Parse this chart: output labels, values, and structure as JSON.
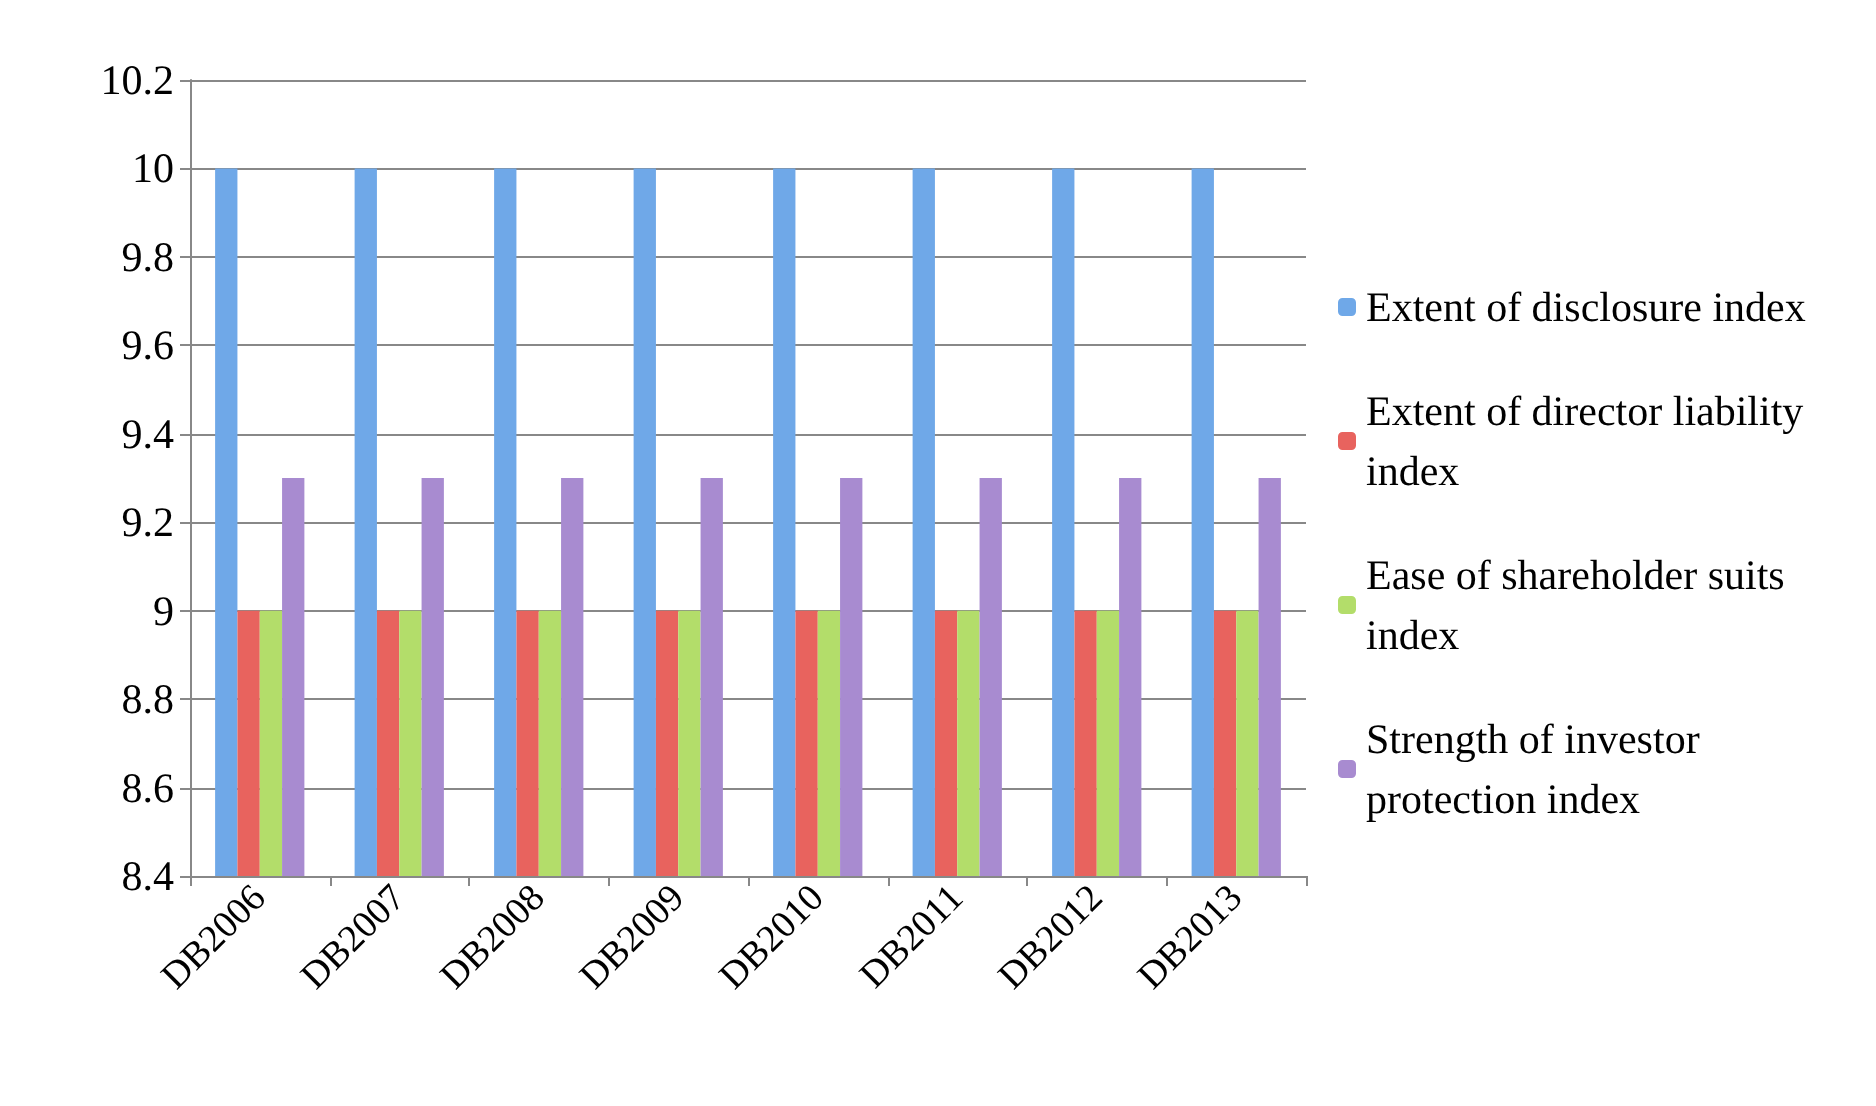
{
  "chart_data": {
    "type": "bar",
    "categories": [
      "DB2006",
      "DB2007",
      "DB2008",
      "DB2009",
      "DB2010",
      "DB2011",
      "DB2012",
      "DB2013"
    ],
    "series": [
      {
        "name": "Extent of disclosure index",
        "color": "#6fa8e8",
        "values": [
          10,
          10,
          10,
          10,
          10,
          10,
          10,
          10
        ]
      },
      {
        "name": "Extent of director liability index",
        "color": "#e8635e",
        "values": [
          9,
          9,
          9,
          9,
          9,
          9,
          9,
          9
        ]
      },
      {
        "name": "Ease of shareholder suits index",
        "color": "#b3dd6a",
        "values": [
          9,
          9,
          9,
          9,
          9,
          9,
          9,
          9
        ]
      },
      {
        "name": "Strength of investor protection index",
        "color": "#a88bd0",
        "values": [
          9.3,
          9.3,
          9.3,
          9.3,
          9.3,
          9.3,
          9.3,
          9.3
        ]
      }
    ],
    "ylim": [
      8.4,
      10.2
    ],
    "yticks": [
      8.4,
      8.6,
      8.8,
      9,
      9.2,
      9.4,
      9.6,
      9.8,
      10,
      10.2
    ],
    "grid": "y",
    "legend": "right"
  }
}
